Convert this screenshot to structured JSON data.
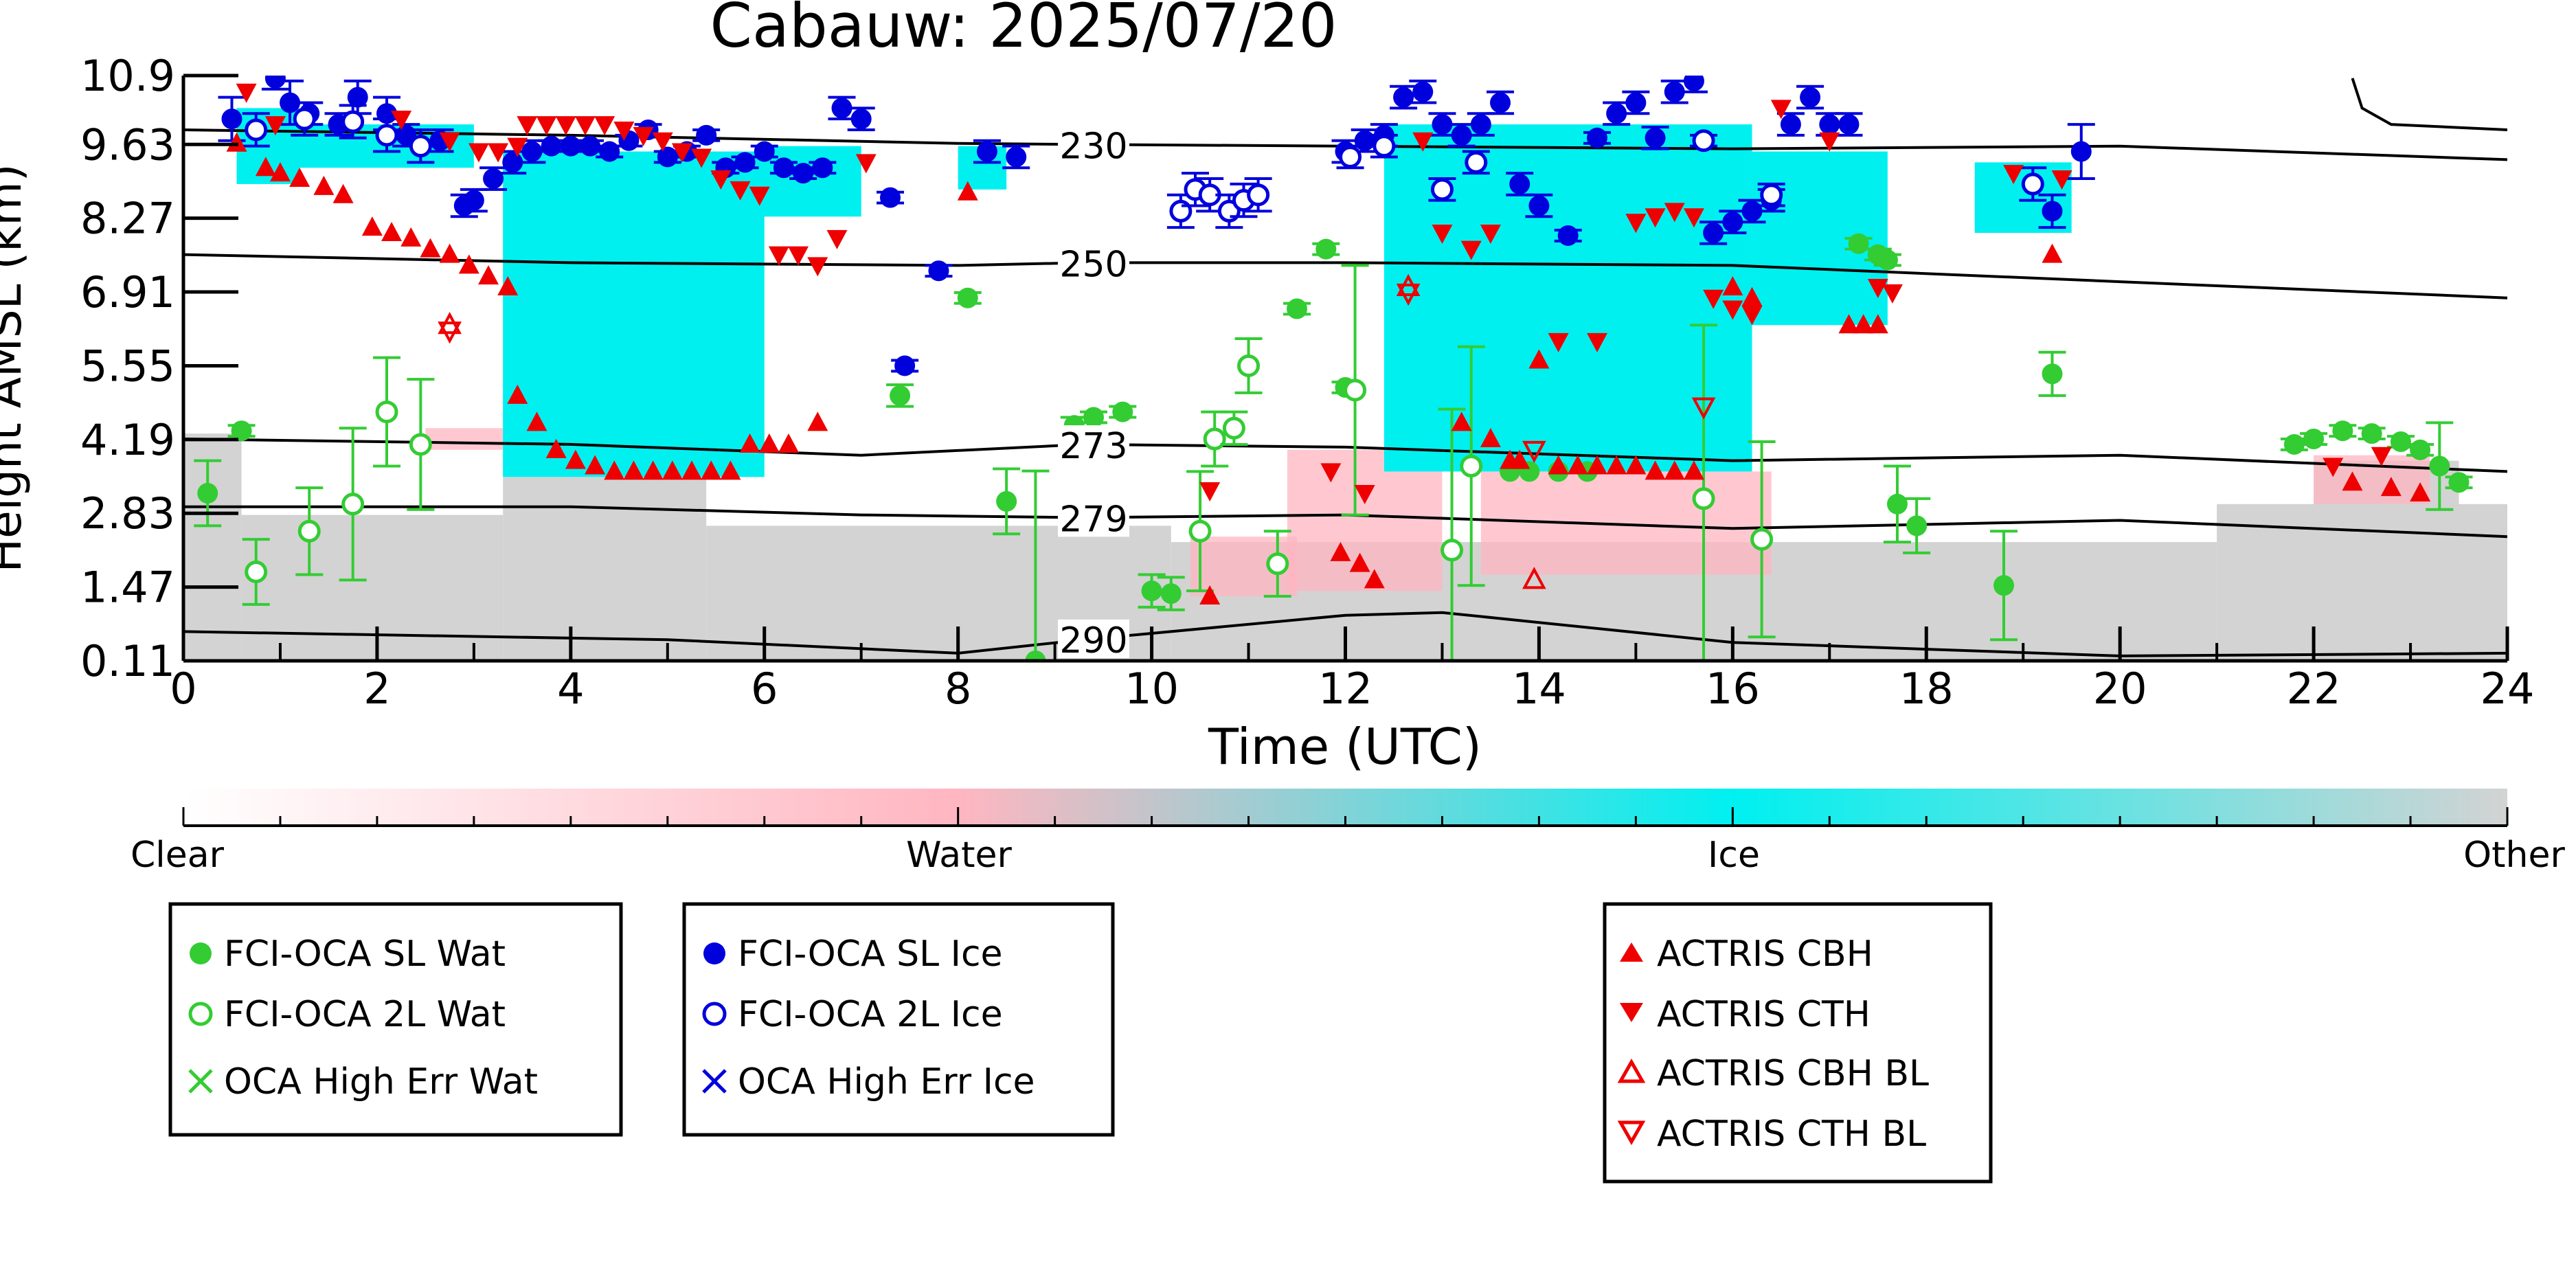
{
  "chart_data": {
    "type": "scatter",
    "title": "Cabauw: 2025/07/20",
    "xlabel": "Time (UTC)",
    "ylabel": "Height AMSL (km)",
    "xlim": [
      0,
      24
    ],
    "ylim": [
      0.11,
      10.9
    ],
    "x_ticks": [
      "0",
      "2",
      "4",
      "6",
      "8",
      "10",
      "12",
      "14",
      "16",
      "18",
      "20",
      "22",
      "24"
    ],
    "y_ticks": [
      "0.11",
      "1.47",
      "2.83",
      "4.19",
      "5.55",
      "6.91",
      "8.27",
      "9.63",
      "10.9"
    ],
    "y_tick_values": [
      0.11,
      1.47,
      2.83,
      4.19,
      5.55,
      6.91,
      8.27,
      9.63,
      10.9
    ],
    "colorbar": {
      "labels": [
        "Clear",
        "Water",
        "Ice",
        "Other"
      ],
      "colors": {
        "clear": "#ffffff",
        "water": "#ffb6c1",
        "ice": "#00f0f0",
        "other": "#d3d3d3"
      }
    },
    "background_mask": {
      "ice": [
        {
          "x0": 0.55,
          "x1": 1.2,
          "y0": 8.9,
          "y1": 10.3
        },
        {
          "x0": 1.0,
          "x1": 3.0,
          "y0": 9.2,
          "y1": 10.0
        },
        {
          "x0": 3.3,
          "x1": 6.0,
          "y0": 3.5,
          "y1": 9.5
        },
        {
          "x0": 5.9,
          "x1": 7.0,
          "y0": 8.3,
          "y1": 9.6
        },
        {
          "x0": 8.0,
          "x1": 8.5,
          "y0": 8.8,
          "y1": 9.6
        },
        {
          "x0": 12.4,
          "x1": 16.2,
          "y0": 3.6,
          "y1": 10.0
        },
        {
          "x0": 16.2,
          "x1": 17.6,
          "y0": 6.3,
          "y1": 9.5
        },
        {
          "x0": 18.5,
          "x1": 19.5,
          "y0": 8.0,
          "y1": 9.3
        }
      ],
      "water": [
        {
          "x0": 2.5,
          "x1": 6.0,
          "y0": 4.0,
          "y1": 4.4
        },
        {
          "x0": 11.4,
          "x1": 13.0,
          "y0": 1.4,
          "y1": 4.0
        },
        {
          "x0": 13.4,
          "x1": 16.4,
          "y0": 1.7,
          "y1": 3.6
        },
        {
          "x0": 10.4,
          "x1": 11.5,
          "y0": 1.3,
          "y1": 2.4
        },
        {
          "x0": 22.0,
          "x1": 23.2,
          "y0": 3.0,
          "y1": 3.9
        }
      ],
      "other": [
        {
          "x0": 0.0,
          "x1": 0.6,
          "y0": 0.11,
          "y1": 4.3
        },
        {
          "x0": 0.6,
          "x1": 3.3,
          "y0": 0.11,
          "y1": 2.8
        },
        {
          "x0": 3.3,
          "x1": 5.4,
          "y0": 0.11,
          "y1": 3.5
        },
        {
          "x0": 5.4,
          "x1": 10.2,
          "y0": 0.11,
          "y1": 2.6
        },
        {
          "x0": 10.2,
          "x1": 21.0,
          "y0": 0.11,
          "y1": 2.3
        },
        {
          "x0": 21.0,
          "x1": 24.0,
          "y0": 0.11,
          "y1": 3.0
        },
        {
          "x0": 22.0,
          "x1": 23.5,
          "y0": 2.9,
          "y1": 3.8
        }
      ]
    },
    "isotherms": [
      {
        "label": "230",
        "label_x": 9.4,
        "x": [
          0,
          4,
          8,
          9.3,
          12,
          16,
          20,
          24
        ],
        "y": [
          9.9,
          9.8,
          9.65,
          9.63,
          9.6,
          9.55,
          9.6,
          9.35
        ]
      },
      {
        "label": "250",
        "label_x": 9.4,
        "x": [
          0,
          4,
          8,
          9.3,
          12,
          16,
          20,
          24
        ],
        "y": [
          7.6,
          7.45,
          7.4,
          7.45,
          7.45,
          7.4,
          7.1,
          6.8
        ]
      },
      {
        "label": "273",
        "label_x": 9.4,
        "x": [
          0,
          4,
          7,
          9.3,
          12,
          16,
          20,
          24
        ],
        "y": [
          4.2,
          4.1,
          3.9,
          4.1,
          4.05,
          3.8,
          3.9,
          3.6
        ]
      },
      {
        "label": "279",
        "label_x": 9.4,
        "x": [
          0,
          4,
          7,
          9.3,
          12,
          16,
          20,
          24
        ],
        "y": [
          2.95,
          2.95,
          2.8,
          2.75,
          2.8,
          2.55,
          2.7,
          2.4
        ]
      },
      {
        "label": "290",
        "label_x": 9.4,
        "x": [
          0,
          5,
          8,
          9.3,
          12,
          13,
          16,
          20,
          24
        ],
        "y": [
          0.65,
          0.5,
          0.25,
          0.5,
          0.95,
          1.0,
          0.45,
          0.2,
          0.25
        ]
      },
      {
        "label": "",
        "label_x": null,
        "x": [
          22.4,
          22.5,
          22.8,
          24
        ],
        "y": [
          10.85,
          10.3,
          10.0,
          9.9
        ]
      }
    ],
    "series": [
      {
        "name": "FCI-OCA SL Wat",
        "marker": "circle-filled",
        "color": "#33cc33",
        "x": [
          0.25,
          0.6,
          7.4,
          8.1,
          9.2,
          9.4,
          9.7,
          12.0,
          13.7,
          13.9,
          14.2,
          14.5,
          17.3,
          17.5,
          17.6,
          19.3,
          21.8,
          22.0,
          22.3,
          22.6,
          22.9,
          23.1,
          23.3,
          23.5,
          8.5,
          10.0,
          10.2,
          17.7,
          17.9,
          18.8,
          8.8,
          11.5,
          11.8
        ],
        "y": [
          3.2,
          4.35,
          5.0,
          6.8,
          4.45,
          4.6,
          4.7,
          5.15,
          3.6,
          3.6,
          3.6,
          3.6,
          7.8,
          7.6,
          7.5,
          5.4,
          4.1,
          4.2,
          4.35,
          4.3,
          4.15,
          4.0,
          3.7,
          3.4,
          3.05,
          1.4,
          1.35,
          3.0,
          2.6,
          1.5,
          0.11,
          6.6,
          7.7
        ],
        "yerr": [
          0.6,
          0.1,
          0.2,
          0.1,
          0.15,
          0.1,
          0.1,
          0.1,
          0.0,
          0.0,
          0.0,
          0.0,
          0.1,
          0.1,
          0.1,
          0.4,
          0.1,
          0.1,
          0.1,
          0.1,
          0.1,
          0.1,
          0.8,
          0.1,
          0.6,
          0.3,
          0.3,
          0.7,
          0.5,
          1.0,
          3.5,
          0.1,
          0.1
        ]
      },
      {
        "name": "FCI-OCA 2L Wat",
        "marker": "circle-open",
        "color": "#33cc33",
        "x": [
          0.75,
          1.3,
          1.75,
          2.1,
          2.45,
          10.5,
          10.65,
          10.85,
          11.0,
          11.3,
          12.1,
          13.1,
          13.3,
          15.7,
          16.3
        ],
        "y": [
          1.75,
          2.5,
          3.0,
          4.7,
          4.1,
          2.5,
          4.2,
          4.4,
          5.55,
          1.9,
          5.1,
          2.15,
          3.7,
          3.1,
          2.35
        ],
        "yerr": [
          0.6,
          0.8,
          1.4,
          1.0,
          1.2,
          1.1,
          0.5,
          0.3,
          0.5,
          0.6,
          2.3,
          2.6,
          2.2,
          3.2,
          1.8
        ]
      },
      {
        "name": "FCI-OCA SL Ice",
        "marker": "circle-filled",
        "color": "#0000dd",
        "x": [
          0.5,
          0.95,
          1.1,
          1.3,
          1.6,
          1.8,
          2.1,
          2.3,
          2.65,
          2.9,
          3.0,
          3.2,
          3.4,
          3.6,
          3.8,
          4.0,
          4.2,
          4.4,
          4.6,
          4.8,
          5.0,
          5.2,
          5.4,
          5.6,
          5.8,
          6.0,
          6.2,
          6.4,
          6.6,
          6.8,
          7.0,
          7.3,
          7.45,
          7.8,
          8.3,
          8.6,
          12.0,
          12.2,
          12.4,
          12.6,
          12.8,
          13.0,
          13.2,
          13.4,
          13.6,
          13.8,
          14.0,
          14.3,
          14.6,
          14.8,
          15.0,
          15.2,
          15.4,
          15.6,
          15.8,
          16.0,
          16.2,
          16.4,
          16.6,
          16.8,
          17.0,
          17.2,
          19.3,
          19.6
        ],
        "y": [
          10.1,
          10.85,
          10.4,
          10.2,
          10.0,
          10.5,
          10.2,
          9.8,
          9.7,
          8.5,
          8.6,
          9.0,
          9.3,
          9.5,
          9.6,
          9.6,
          9.6,
          9.5,
          9.7,
          9.9,
          9.4,
          9.5,
          9.8,
          9.2,
          9.3,
          9.5,
          9.2,
          9.1,
          9.2,
          10.3,
          10.1,
          8.65,
          5.55,
          7.3,
          9.5,
          9.4,
          9.5,
          9.7,
          9.8,
          10.5,
          10.6,
          10.0,
          9.8,
          10.0,
          10.4,
          8.9,
          8.5,
          7.95,
          9.75,
          10.2,
          10.4,
          9.75,
          10.6,
          10.8,
          8.0,
          8.2,
          8.4,
          8.6,
          10.0,
          10.5,
          10.0,
          10.0,
          8.4,
          9.5
        ],
        "yerr": [
          0.4,
          0.2,
          0.4,
          0.2,
          0.2,
          0.3,
          0.3,
          0.2,
          0.2,
          0.2,
          0.2,
          0.2,
          0.2,
          0.2,
          0.1,
          0.1,
          0.1,
          0.1,
          0.1,
          0.1,
          0.1,
          0.1,
          0.1,
          0.1,
          0.1,
          0.1,
          0.1,
          0.1,
          0.1,
          0.2,
          0.2,
          0.1,
          0.1,
          0.1,
          0.2,
          0.2,
          0.2,
          0.2,
          0.2,
          0.2,
          0.2,
          0.2,
          0.2,
          0.2,
          0.2,
          0.2,
          0.2,
          0.1,
          0.1,
          0.2,
          0.2,
          0.2,
          0.2,
          0.2,
          0.2,
          0.2,
          0.2,
          0.2,
          0.2,
          0.2,
          0.2,
          0.2,
          0.3,
          0.5
        ]
      },
      {
        "name": "FCI-OCA 2L Ice",
        "marker": "circle-open",
        "color": "#0000dd",
        "x": [
          0.75,
          1.25,
          1.75,
          2.1,
          2.45,
          10.3,
          10.45,
          10.6,
          10.8,
          10.95,
          11.1,
          12.05,
          12.4,
          13.0,
          13.35,
          15.7,
          16.4,
          19.1
        ],
        "y": [
          9.9,
          10.1,
          10.05,
          9.8,
          9.6,
          8.4,
          8.8,
          8.7,
          8.4,
          8.6,
          8.7,
          9.4,
          9.6,
          8.8,
          9.3,
          9.7,
          8.7,
          8.9
        ],
        "yerr": [
          0.3,
          0.3,
          0.3,
          0.3,
          0.3,
          0.3,
          0.3,
          0.3,
          0.3,
          0.3,
          0.3,
          0.2,
          0.2,
          0.2,
          0.2,
          0.1,
          0.2,
          0.3
        ]
      },
      {
        "name": "OCA High Err Wat",
        "marker": "x",
        "color": "#33cc33",
        "x": [],
        "y": []
      },
      {
        "name": "OCA High Err Ice",
        "marker": "x",
        "color": "#0000dd",
        "x": [],
        "y": []
      },
      {
        "name": "ACTRIS CBH",
        "marker": "triangle-up-filled",
        "color": "#ee0000",
        "x": [
          0.55,
          0.85,
          1.0,
          1.2,
          1.45,
          1.65,
          1.95,
          2.15,
          2.35,
          2.55,
          2.75,
          2.95,
          3.15,
          3.35,
          3.45,
          3.65,
          3.85,
          4.05,
          4.25,
          4.45,
          4.65,
          4.85,
          5.05,
          5.25,
          5.45,
          5.65,
          5.85,
          6.05,
          6.25,
          6.55,
          8.1,
          10.6,
          11.95,
          12.15,
          12.3,
          13.2,
          13.5,
          13.7,
          13.8,
          14.0,
          14.2,
          14.4,
          14.6,
          14.8,
          15.0,
          15.2,
          15.4,
          15.6,
          16.0,
          16.2,
          17.2,
          17.35,
          17.5,
          19.3,
          22.4,
          22.8,
          23.1
        ],
        "y": [
          9.65,
          9.2,
          9.1,
          9.0,
          8.85,
          8.7,
          8.1,
          8.0,
          7.9,
          7.7,
          7.6,
          7.4,
          7.2,
          7.0,
          5.0,
          4.5,
          4.0,
          3.8,
          3.7,
          3.6,
          3.6,
          3.6,
          3.6,
          3.6,
          3.6,
          3.6,
          4.1,
          4.1,
          4.1,
          4.5,
          8.75,
          1.3,
          2.1,
          1.9,
          1.6,
          4.5,
          4.2,
          3.8,
          3.8,
          5.65,
          3.7,
          3.7,
          3.7,
          3.7,
          3.7,
          3.6,
          3.6,
          3.6,
          7.0,
          6.8,
          6.3,
          6.3,
          6.3,
          7.6,
          3.4,
          3.3,
          3.2
        ]
      },
      {
        "name": "ACTRIS CTH",
        "marker": "triangle-down-filled",
        "color": "#ee0000",
        "x": [
          0.65,
          0.95,
          2.25,
          2.75,
          3.05,
          3.25,
          3.45,
          3.55,
          3.75,
          3.95,
          4.15,
          4.35,
          4.55,
          4.75,
          4.95,
          5.15,
          5.35,
          5.55,
          5.75,
          5.95,
          6.15,
          6.35,
          6.55,
          6.75,
          7.05,
          10.6,
          11.85,
          12.2,
          12.8,
          13.0,
          13.3,
          13.5,
          14.2,
          14.6,
          15.0,
          15.2,
          15.4,
          15.6,
          15.8,
          16.0,
          16.2,
          16.5,
          17.0,
          17.5,
          17.65,
          18.9,
          19.4,
          22.2,
          22.7
        ],
        "y": [
          10.6,
          10.0,
          10.1,
          9.7,
          9.5,
          9.5,
          9.6,
          10.0,
          10.0,
          10.0,
          10.0,
          10.0,
          9.9,
          9.8,
          9.7,
          9.5,
          9.4,
          9.0,
          8.8,
          8.7,
          7.6,
          7.6,
          7.4,
          7.9,
          9.3,
          3.25,
          3.6,
          3.2,
          9.7,
          8.0,
          7.7,
          8.0,
          6.0,
          6.0,
          8.2,
          8.3,
          8.4,
          8.3,
          6.8,
          6.6,
          6.5,
          10.3,
          9.7,
          7.0,
          6.9,
          9.1,
          9.0,
          3.7,
          3.9
        ]
      },
      {
        "name": "ACTRIS CBH BL",
        "marker": "triangle-up-open",
        "color": "#ee0000",
        "x": [
          2.75,
          12.65,
          13.95
        ],
        "y": [
          6.3,
          7.0,
          1.6
        ]
      },
      {
        "name": "ACTRIS CTH BL",
        "marker": "triangle-down-open",
        "color": "#ee0000",
        "x": [
          2.75,
          12.65,
          13.95,
          15.7
        ],
        "y": [
          6.2,
          6.9,
          4.0,
          4.8
        ]
      }
    ],
    "legends": [
      [
        "FCI-OCA SL Wat",
        "FCI-OCA 2L Wat",
        "OCA High Err Wat"
      ],
      [
        "FCI-OCA SL Ice",
        "FCI-OCA 2L Ice",
        "OCA High Err Ice"
      ],
      [
        "ACTRIS CBH",
        "ACTRIS CTH",
        "ACTRIS CBH BL",
        "ACTRIS CTH BL"
      ]
    ],
    "grid": false,
    "legend_position": "below-colorbar"
  }
}
